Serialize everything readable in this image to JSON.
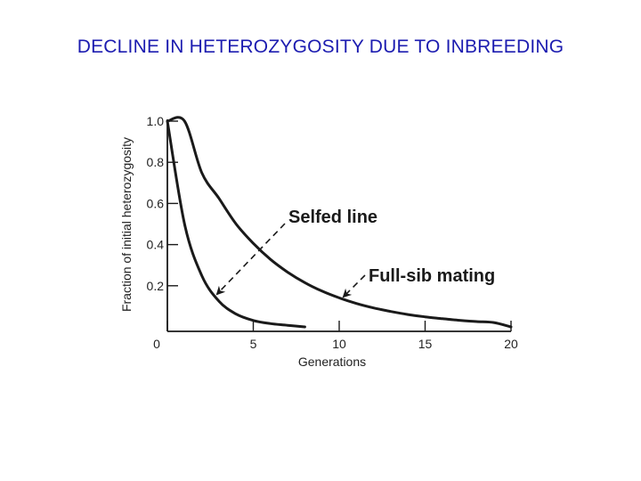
{
  "slide": {
    "title": "DECLINE IN HETEROZYGOSITY DUE TO INBREEDING"
  },
  "chart_data": {
    "type": "line",
    "title": "",
    "xlabel": "Generations",
    "ylabel": "Fraction of initial heterozygosity",
    "xlim": [
      0,
      20
    ],
    "ylim": [
      0,
      1.0
    ],
    "x_ticks": [
      0,
      5,
      10,
      15,
      20
    ],
    "y_ticks": [
      0.2,
      0.4,
      0.6,
      0.8,
      1.0
    ],
    "grid": false,
    "line_color": "#1a1a1a",
    "series": [
      {
        "name": "Selfed line",
        "x": [
          0,
          1,
          2,
          3,
          4,
          5,
          6,
          7,
          8
        ],
        "y": [
          1.0,
          0.5,
          0.25,
          0.125,
          0.0625,
          0.031,
          0.016,
          0.008,
          0.0
        ]
      },
      {
        "name": "Full-sib mating",
        "x": [
          0,
          1,
          2,
          3,
          4,
          5,
          6,
          7,
          8,
          9,
          10,
          11,
          12,
          13,
          14,
          15,
          16,
          17,
          18,
          19,
          20
        ],
        "y": [
          1.0,
          1.0,
          0.75,
          0.625,
          0.5,
          0.406,
          0.328,
          0.266,
          0.215,
          0.174,
          0.141,
          0.114,
          0.092,
          0.075,
          0.06,
          0.049,
          0.04,
          0.032,
          0.026,
          0.021,
          0.0
        ]
      }
    ],
    "annotations": [
      {
        "text": "Selfed line",
        "series": "Selfed line"
      },
      {
        "text": "Full-sib mating",
        "series": "Full-sib mating"
      }
    ]
  }
}
